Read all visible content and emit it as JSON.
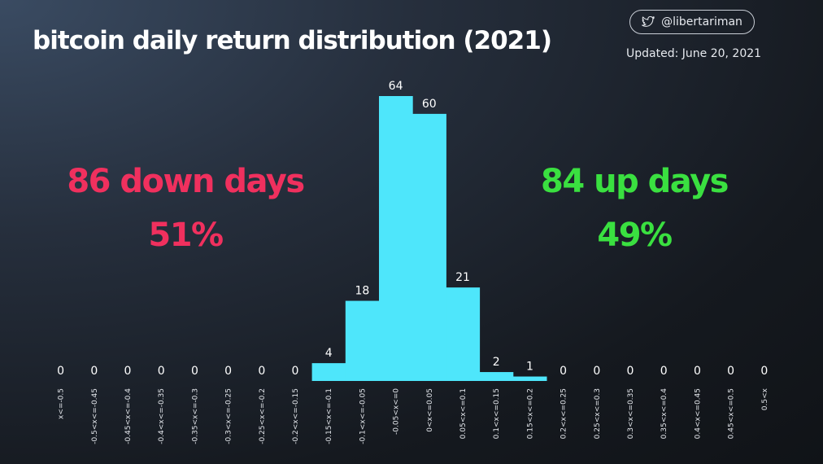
{
  "header": {
    "title": "bitcoin daily return distribution (2021)",
    "handle": "@libertariman",
    "handle_icon": "twitter-bird-icon",
    "updated": "Updated: June 20, 2021"
  },
  "stats": {
    "down_label": "86 down days",
    "down_pct": "51%",
    "up_label": "84 up days",
    "up_pct": "49%",
    "down_color": "#f0305e",
    "up_color": "#3ae040"
  },
  "chart_data": {
    "type": "bar",
    "bar_color": "#4ee6fb",
    "categories": [
      "x<=-0.5",
      "-0.5<x<=-0.45",
      "-0.45<x<=-0.4",
      "-0.4<x<=-0.35",
      "-0.35<x<=-0.3",
      "-0.3<x<=-0.25",
      "-0.25<x<=-0.2",
      "-0.2<x<=-0.15",
      "-0.15<x<=-0.1",
      "-0.1<x<=-0.05",
      "-0.05<x<=0",
      "0<x<=0.05",
      "0.05<x<=0.1",
      "0.1<x<=0.15",
      "0.15<x<=0.2",
      "0.2<x<=0.25",
      "0.25<x<=0.3",
      "0.3<x<=0.35",
      "0.35<x<=0.4",
      "0.4<x<=0.45",
      "0.45<x<=0.5",
      "0.5<x"
    ],
    "values": [
      0,
      0,
      0,
      0,
      0,
      0,
      0,
      0,
      4,
      18,
      64,
      60,
      21,
      2,
      1,
      0,
      0,
      0,
      0,
      0,
      0,
      0
    ],
    "ylim": [
      0,
      64
    ],
    "grid": false,
    "legend": "none"
  }
}
